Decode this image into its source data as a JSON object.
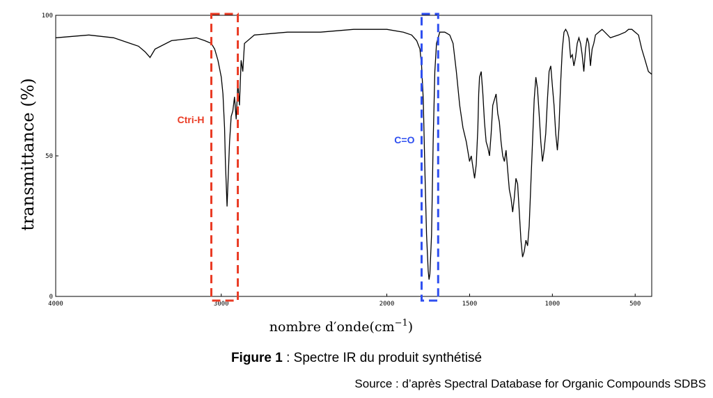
{
  "chart_data": {
    "type": "line",
    "ylabel": "transmittance (%)",
    "xlabel_main": "nombre d′onde",
    "xlabel_unit": "(cm",
    "xlabel_exp": "−1",
    "xlabel_close": ")",
    "xlim": [
      4000,
      400
    ],
    "ylim": [
      0,
      100
    ],
    "x_ticks": [
      4000,
      3000,
      2000,
      1500,
      1000,
      500
    ],
    "x_tick_labels": [
      "4000",
      "3000",
      "2000",
      "1500",
      "1000",
      "500"
    ],
    "y_ticks": [
      0,
      50,
      100
    ],
    "y_tick_labels": [
      "0",
      "50",
      "100"
    ],
    "series": [
      {
        "x": [
          4000,
          3800,
          3650,
          3550,
          3500,
          3460,
          3430,
          3400,
          3300,
          3150,
          3100,
          3060,
          3040,
          3020,
          3000,
          2990,
          2980,
          2975,
          2965,
          2950,
          2940,
          2930,
          2920,
          2910,
          2900,
          2890,
          2880,
          2870,
          2860,
          2800,
          2600,
          2400,
          2200,
          2000,
          1900,
          1850,
          1820,
          1800,
          1790,
          1780,
          1770,
          1760,
          1750,
          1745,
          1740,
          1730,
          1720,
          1710,
          1700,
          1680,
          1650,
          1620,
          1600,
          1580,
          1560,
          1540,
          1520,
          1500,
          1490,
          1480,
          1470,
          1460,
          1450,
          1445,
          1440,
          1430,
          1420,
          1410,
          1400,
          1390,
          1380,
          1370,
          1360,
          1350,
          1340,
          1330,
          1320,
          1310,
          1300,
          1290,
          1280,
          1270,
          1260,
          1250,
          1240,
          1230,
          1220,
          1210,
          1200,
          1190,
          1180,
          1170,
          1160,
          1150,
          1140,
          1130,
          1120,
          1110,
          1100,
          1090,
          1080,
          1070,
          1060,
          1050,
          1040,
          1030,
          1020,
          1010,
          1000,
          990,
          980,
          970,
          960,
          950,
          940,
          930,
          920,
          910,
          900,
          890,
          880,
          870,
          860,
          850,
          840,
          830,
          820,
          810,
          800,
          790,
          780,
          770,
          760,
          750,
          740,
          720,
          700,
          650,
          600,
          560,
          540,
          520,
          500,
          480,
          460,
          440,
          420,
          400
        ],
        "y": [
          92,
          93,
          92,
          90,
          89,
          87,
          85,
          88,
          91,
          92,
          91,
          90,
          88,
          84,
          78,
          72,
          60,
          48,
          32,
          55,
          64,
          66,
          71,
          63,
          76,
          68,
          84,
          80,
          90,
          93,
          94,
          94,
          95,
          95,
          94,
          93,
          91,
          88,
          82,
          70,
          45,
          22,
          9,
          6,
          8,
          22,
          55,
          80,
          90,
          94,
          94,
          93,
          90,
          80,
          68,
          60,
          55,
          48,
          50,
          46,
          42,
          47,
          60,
          72,
          78,
          80,
          72,
          62,
          55,
          53,
          50,
          58,
          68,
          70,
          72,
          65,
          62,
          55,
          50,
          48,
          52,
          45,
          38,
          35,
          30,
          35,
          42,
          40,
          30,
          20,
          14,
          16,
          20,
          18,
          25,
          40,
          55,
          70,
          78,
          74,
          65,
          55,
          48,
          52,
          58,
          70,
          80,
          82,
          75,
          68,
          58,
          52,
          60,
          76,
          88,
          94,
          95,
          94,
          92,
          85,
          86,
          82,
          85,
          90,
          92,
          90,
          86,
          80,
          88,
          92,
          90,
          82,
          88,
          90,
          93,
          94,
          95,
          92,
          93,
          94,
          95,
          95,
          94,
          93,
          88,
          84,
          80,
          79
        ]
      }
    ],
    "annotations": [
      {
        "label": "Ctri-H",
        "x_range": [
          3060,
          2900
        ],
        "color": "#ea3b24"
      },
      {
        "label": "C=O",
        "x_range": [
          1790,
          1690
        ],
        "color": "#2e4ff0"
      }
    ],
    "grid": false
  },
  "caption": {
    "figure_label": "Figure 1",
    "figure_text": " : Spectre IR du produit synthétisé",
    "source": "Source : d’après Spectral Database for Organic Compounds SDBS"
  }
}
